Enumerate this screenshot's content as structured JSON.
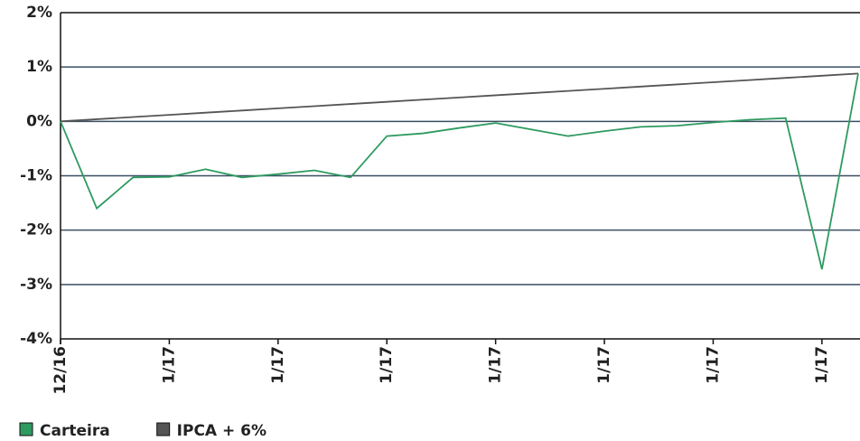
{
  "chart_data": {
    "type": "line",
    "categories": [
      "12/16",
      null,
      null,
      "1/17",
      null,
      null,
      "1/17",
      null,
      null,
      "1/17",
      null,
      null,
      "1/17",
      null,
      null,
      "1/17",
      null,
      null,
      "1/17",
      null,
      null,
      "1/17",
      null
    ],
    "series": [
      {
        "name": "Carteira",
        "color": "#2e9a60",
        "values": [
          0,
          -1.6,
          -1.03,
          -1.02,
          -0.88,
          -1.03,
          -0.97,
          -0.9,
          -1.03,
          -0.27,
          -0.22,
          -0.12,
          -0.03,
          -0.15,
          -0.27,
          -0.18,
          -0.1,
          -0.08,
          -0.02,
          0.03,
          0.06,
          -2.72,
          0.88
        ]
      },
      {
        "name": "IPCA + 6%",
        "color": "#555555",
        "values": [
          0,
          0.04,
          0.08,
          0.12,
          0.16,
          0.2,
          0.24,
          0.28,
          0.32,
          0.36,
          0.4,
          0.44,
          0.48,
          0.52,
          0.56,
          0.6,
          0.64,
          0.68,
          0.72,
          0.76,
          0.8,
          0.84,
          0.88
        ]
      }
    ],
    "ylim": [
      -4,
      2
    ],
    "yticks": [
      {
        "value": -4,
        "label": "-4%"
      },
      {
        "value": -3,
        "label": "-3%"
      },
      {
        "value": -2,
        "label": "-2%"
      },
      {
        "value": -1,
        "label": "-1%"
      },
      {
        "value": 0,
        "label": "0%"
      },
      {
        "value": 1,
        "label": "1%"
      },
      {
        "value": 2,
        "label": "2%"
      }
    ],
    "grid": true,
    "legend": "bottom-left"
  }
}
